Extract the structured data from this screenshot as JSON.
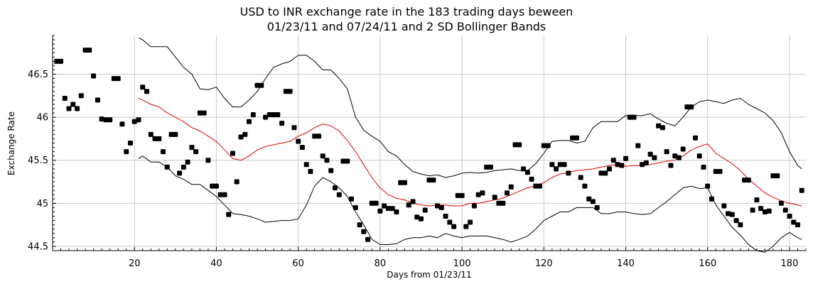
{
  "chart_data": {
    "type": "scatter",
    "title_lines": [
      "USD to INR exchange rate in the 183 trading days beween",
      "01/23/11 and 07/24/11 and 2 SD Bollinger Bands"
    ],
    "xlabel": "Days from 01/23/11",
    "ylabel": "Exchange Rate",
    "xlim": [
      0,
      184
    ],
    "ylim": [
      44.45,
      46.95
    ],
    "x_ticks": [
      20,
      40,
      60,
      80,
      100,
      120,
      140,
      160,
      180
    ],
    "y_ticks": [
      44.5,
      45,
      45.5,
      46,
      46.5
    ],
    "y_tick_labels": [
      "44.5",
      "45",
      "45.5",
      "46",
      "46.5"
    ],
    "grid": true,
    "colors": {
      "points": "#000000",
      "moving_average": "#e00000",
      "bands": "#000000",
      "grid": "#c8c8c8"
    },
    "series": [
      {
        "kind": "points",
        "x": [
          1,
          2,
          3,
          4,
          5,
          6,
          7,
          8,
          9,
          10,
          11,
          12,
          13,
          14,
          15,
          16,
          17,
          18,
          19,
          20,
          21,
          22,
          23,
          24,
          25,
          26,
          27,
          28,
          29,
          30,
          31,
          32,
          33,
          34,
          35,
          36,
          37,
          38,
          39,
          40,
          41,
          42,
          43,
          44,
          45,
          46,
          47,
          48,
          49,
          50,
          51,
          52,
          53,
          54,
          55,
          56,
          57,
          58,
          59,
          60,
          61,
          62,
          63,
          64,
          65,
          66,
          67,
          68,
          69,
          70,
          71,
          72,
          73,
          74,
          75,
          76,
          77,
          78,
          79,
          80,
          81,
          82,
          83,
          84,
          85,
          86,
          87,
          88,
          89,
          90,
          91,
          92,
          93,
          94,
          95,
          96,
          97,
          98,
          99,
          100,
          101,
          102,
          103,
          104,
          105,
          106,
          107,
          108,
          109,
          110,
          111,
          112,
          113,
          114,
          115,
          116,
          117,
          118,
          119,
          120,
          121,
          122,
          123,
          124,
          125,
          126,
          127,
          128,
          129,
          130,
          131,
          132,
          133,
          134,
          135,
          136,
          137,
          138,
          139,
          140,
          141,
          142,
          143,
          144,
          145,
          146,
          147,
          148,
          149,
          150,
          151,
          152,
          153,
          154,
          155,
          156,
          157,
          158,
          159,
          160,
          161,
          162,
          163,
          164,
          165,
          166,
          167,
          168,
          169,
          170,
          171,
          172,
          173,
          174,
          175,
          176,
          177,
          178,
          179,
          180,
          181,
          182,
          183
        ],
        "y": [
          46.65,
          46.65,
          46.22,
          46.1,
          46.15,
          46.1,
          46.25,
          46.78,
          46.78,
          46.48,
          46.2,
          45.98,
          45.97,
          45.97,
          46.45,
          46.45,
          45.92,
          45.6,
          45.7,
          45.95,
          45.97,
          46.35,
          46.3,
          45.8,
          45.75,
          45.75,
          45.6,
          45.42,
          45.8,
          45.8,
          45.35,
          45.42,
          45.48,
          45.65,
          45.6,
          46.05,
          46.05,
          45.5,
          45.2,
          45.2,
          45.1,
          45.1,
          44.87,
          45.58,
          45.25,
          45.77,
          45.8,
          45.95,
          46.03,
          46.37,
          46.37,
          46.0,
          46.03,
          46.03,
          46.03,
          45.93,
          46.3,
          46.3,
          45.88,
          45.72,
          45.65,
          45.45,
          45.37,
          45.78,
          45.78,
          45.55,
          45.5,
          45.38,
          45.18,
          45.1,
          45.49,
          45.49,
          45.05,
          44.95,
          44.75,
          44.67,
          44.58,
          45.0,
          45.0,
          44.91,
          44.97,
          44.94,
          44.94,
          44.9,
          45.24,
          45.24,
          44.98,
          45.02,
          44.84,
          44.82,
          44.92,
          45.27,
          45.27,
          44.97,
          44.95,
          44.85,
          44.78,
          44.73,
          45.09,
          45.09,
          44.73,
          44.78,
          44.97,
          45.1,
          45.12,
          45.42,
          45.42,
          45.07,
          45.0,
          45.0,
          45.12,
          45.19,
          45.68,
          45.68,
          45.4,
          45.36,
          45.28,
          45.2,
          45.2,
          45.67,
          45.67,
          45.45,
          45.4,
          45.45,
          45.45,
          45.35,
          45.76,
          45.76,
          45.3,
          45.2,
          45.05,
          45.02,
          44.95,
          45.35,
          45.35,
          45.4,
          45.5,
          45.45,
          45.44,
          45.52,
          46.0,
          46.0,
          45.67,
          45.45,
          45.47,
          45.57,
          45.53,
          45.9,
          45.88,
          45.6,
          45.44,
          45.55,
          45.53,
          45.63,
          46.12,
          46.12,
          45.76,
          45.55,
          45.42,
          45.2,
          45.05,
          45.37,
          45.37,
          44.97,
          44.88,
          44.87,
          44.8,
          44.75,
          45.27,
          45.27,
          44.92,
          45.04,
          44.94,
          44.9,
          44.91,
          45.32,
          45.32,
          45.0,
          44.92,
          44.85,
          44.78,
          44.75,
          45.15
        ]
      },
      {
        "kind": "moving_average",
        "x": [
          21,
          22,
          24,
          26,
          28,
          30,
          32,
          34,
          36,
          38,
          40,
          42,
          44,
          46,
          48,
          50,
          52,
          54,
          56,
          58,
          60,
          62,
          64,
          66,
          68,
          70,
          72,
          74,
          76,
          78,
          80,
          82,
          84,
          86,
          88,
          90,
          92,
          94,
          96,
          98,
          100,
          102,
          104,
          106,
          108,
          110,
          112,
          114,
          116,
          118,
          120,
          122,
          124,
          126,
          128,
          130,
          132,
          134,
          136,
          138,
          140,
          142,
          144,
          146,
          148,
          150,
          152,
          154,
          156,
          158,
          160,
          162,
          164,
          166,
          168,
          170,
          172,
          174,
          176,
          178,
          180,
          182,
          183
        ],
        "y": [
          46.22,
          46.2,
          46.15,
          46.12,
          46.05,
          46.0,
          45.95,
          45.88,
          45.84,
          45.78,
          45.72,
          45.62,
          45.52,
          45.5,
          45.55,
          45.62,
          45.66,
          45.68,
          45.7,
          45.72,
          45.78,
          45.82,
          45.88,
          45.92,
          45.9,
          45.84,
          45.73,
          45.6,
          45.45,
          45.3,
          45.18,
          45.1,
          45.06,
          45.04,
          45.0,
          44.98,
          44.97,
          44.98,
          44.98,
          44.97,
          44.97,
          45.0,
          45.0,
          45.02,
          45.04,
          45.06,
          45.1,
          45.14,
          45.18,
          45.2,
          45.24,
          45.3,
          45.34,
          45.36,
          45.38,
          45.39,
          45.4,
          45.42,
          45.44,
          45.45,
          45.43,
          45.44,
          45.44,
          45.45,
          45.47,
          45.49,
          45.5,
          45.55,
          45.62,
          45.66,
          45.69,
          45.58,
          45.52,
          45.46,
          45.38,
          45.28,
          45.2,
          45.12,
          45.07,
          45.03,
          45.0,
          44.98,
          44.97
        ]
      },
      {
        "kind": "upper_band",
        "x": [
          21,
          22,
          24,
          26,
          28,
          30,
          32,
          34,
          36,
          38,
          40,
          42,
          44,
          46,
          48,
          50,
          52,
          54,
          56,
          58,
          60,
          62,
          64,
          66,
          68,
          70,
          72,
          74,
          76,
          78,
          80,
          82,
          84,
          86,
          88,
          90,
          92,
          94,
          96,
          98,
          100,
          102,
          104,
          106,
          108,
          110,
          112,
          114,
          116,
          118,
          120,
          122,
          124,
          126,
          128,
          130,
          132,
          134,
          136,
          138,
          140,
          142,
          144,
          146,
          148,
          150,
          152,
          154,
          156,
          158,
          160,
          162,
          164,
          166,
          168,
          170,
          172,
          174,
          176,
          178,
          180,
          182,
          183
        ],
        "y": [
          46.92,
          46.9,
          46.82,
          46.82,
          46.82,
          46.7,
          46.58,
          46.5,
          46.33,
          46.32,
          46.35,
          46.22,
          46.12,
          46.12,
          46.2,
          46.3,
          46.45,
          46.58,
          46.62,
          46.65,
          46.72,
          46.72,
          46.65,
          46.55,
          46.55,
          46.45,
          46.33,
          46.0,
          45.85,
          45.78,
          45.72,
          45.6,
          45.55,
          45.45,
          45.37,
          45.34,
          45.32,
          45.33,
          45.3,
          45.32,
          45.35,
          45.36,
          45.35,
          45.36,
          45.38,
          45.39,
          45.4,
          45.38,
          45.38,
          45.46,
          45.58,
          45.72,
          45.73,
          45.73,
          45.7,
          45.72,
          45.88,
          45.95,
          45.95,
          45.95,
          46.02,
          46.02,
          46.02,
          46.04,
          45.98,
          45.93,
          45.9,
          46.0,
          46.12,
          46.18,
          46.2,
          46.18,
          46.16,
          46.2,
          46.22,
          46.15,
          46.1,
          46.05,
          45.96,
          45.82,
          45.6,
          45.44,
          45.4
        ]
      },
      {
        "kind": "lower_band",
        "x": [
          21,
          22,
          24,
          26,
          28,
          30,
          32,
          34,
          36,
          38,
          40,
          42,
          44,
          46,
          48,
          50,
          52,
          54,
          56,
          58,
          60,
          62,
          64,
          66,
          68,
          70,
          72,
          74,
          76,
          78,
          80,
          82,
          84,
          86,
          88,
          90,
          92,
          94,
          96,
          98,
          100,
          102,
          104,
          106,
          108,
          110,
          112,
          114,
          116,
          118,
          120,
          122,
          124,
          126,
          128,
          130,
          132,
          134,
          136,
          138,
          140,
          142,
          144,
          146,
          148,
          150,
          152,
          154,
          156,
          158,
          160,
          162,
          164,
          166,
          168,
          170,
          172,
          174,
          176,
          178,
          180,
          182,
          183
        ],
        "y": [
          45.52,
          45.55,
          45.48,
          45.48,
          45.42,
          45.32,
          45.28,
          45.22,
          45.22,
          45.15,
          45.08,
          44.98,
          44.88,
          44.87,
          44.85,
          44.82,
          44.78,
          44.79,
          44.8,
          44.8,
          44.82,
          44.98,
          45.2,
          45.3,
          45.25,
          45.18,
          45.08,
          44.9,
          44.75,
          44.58,
          44.52,
          44.52,
          44.53,
          44.58,
          44.6,
          44.6,
          44.62,
          44.6,
          44.65,
          44.62,
          44.6,
          44.62,
          44.62,
          44.62,
          44.6,
          44.58,
          44.55,
          44.58,
          44.62,
          44.7,
          44.8,
          44.85,
          44.9,
          44.9,
          44.95,
          44.95,
          44.95,
          44.88,
          44.88,
          44.9,
          44.9,
          44.88,
          44.87,
          44.88,
          44.95,
          45.02,
          45.1,
          45.18,
          45.2,
          45.17,
          45.18,
          44.98,
          44.85,
          44.72,
          44.63,
          44.52,
          44.45,
          44.43,
          44.5,
          44.6,
          44.66,
          44.6,
          44.58
        ]
      }
    ]
  }
}
